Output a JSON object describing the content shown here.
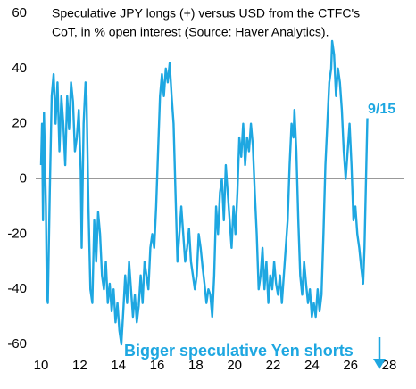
{
  "chart_data": {
    "type": "line",
    "title_lines": [
      "Speculative JPY longs (+) versus USD from the CTFC's",
      "CoT, in % open interest (Source: Haver Analytics)."
    ],
    "color": "#1ea7e1",
    "end_label": "9/15",
    "annotation": "Bigger speculative Yen shorts",
    "x": [
      10.0,
      10.05,
      10.1,
      10.15,
      10.25,
      10.3,
      10.35,
      10.45,
      10.55,
      10.65,
      10.75,
      10.85,
      10.95,
      11.05,
      11.15,
      11.25,
      11.35,
      11.45,
      11.55,
      11.65,
      11.75,
      11.85,
      11.95,
      12.05,
      12.1,
      12.2,
      12.3,
      12.35,
      12.45,
      12.55,
      12.65,
      12.75,
      12.85,
      12.95,
      13.05,
      13.15,
      13.25,
      13.35,
      13.45,
      13.55,
      13.65,
      13.75,
      13.85,
      13.95,
      14.05,
      14.15,
      14.25,
      14.35,
      14.45,
      14.55,
      14.65,
      14.75,
      14.85,
      14.95,
      15.05,
      15.15,
      15.25,
      15.35,
      15.45,
      15.55,
      15.65,
      15.75,
      15.85,
      15.95,
      16.05,
      16.15,
      16.25,
      16.35,
      16.45,
      16.55,
      16.65,
      16.75,
      16.85,
      16.95,
      17.05,
      17.15,
      17.25,
      17.35,
      17.45,
      17.55,
      17.65,
      17.75,
      17.85,
      17.95,
      18.05,
      18.15,
      18.25,
      18.35,
      18.45,
      18.55,
      18.65,
      18.75,
      18.85,
      18.95,
      19.05,
      19.15,
      19.25,
      19.35,
      19.45,
      19.55,
      19.65,
      19.75,
      19.85,
      19.95,
      20.05,
      20.15,
      20.25,
      20.35,
      20.45,
      20.55,
      20.65,
      20.75,
      20.85,
      20.95,
      21.05,
      21.15,
      21.25,
      21.35,
      21.45,
      21.55,
      21.65,
      21.75,
      21.85,
      21.95,
      22.05,
      22.15,
      22.25,
      22.35,
      22.45,
      22.55,
      22.65,
      22.75,
      22.85,
      22.95,
      23.05,
      23.1,
      23.2,
      23.3,
      23.4,
      23.5,
      23.6,
      23.7,
      23.8,
      23.9,
      24.0,
      24.1,
      24.2,
      24.3,
      24.4,
      24.5,
      24.6,
      24.7,
      24.8,
      24.9,
      25.0,
      25.05,
      25.15,
      25.25,
      25.35,
      25.45,
      25.55,
      25.65,
      25.75,
      25.85,
      25.95,
      26.05,
      26.15,
      26.25,
      26.35,
      26.45,
      26.55,
      26.65,
      26.72,
      26.8,
      26.87
    ],
    "values": [
      5,
      20,
      -15,
      24,
      -10,
      -42,
      -45,
      -5,
      30,
      38,
      20,
      35,
      10,
      30,
      20,
      5,
      30,
      18,
      35,
      28,
      10,
      15,
      25,
      3,
      -25,
      20,
      35,
      30,
      -10,
      -40,
      -45,
      -15,
      -30,
      -12,
      -20,
      -35,
      -40,
      -30,
      -45,
      -38,
      -48,
      -40,
      -52,
      -45,
      -55,
      -60,
      -48,
      -35,
      -45,
      -30,
      -40,
      -50,
      -42,
      -52,
      -46,
      -35,
      -45,
      -30,
      -35,
      -40,
      -25,
      -20,
      -25,
      -10,
      10,
      30,
      38,
      30,
      40,
      35,
      42,
      30,
      20,
      -5,
      -30,
      -20,
      -10,
      -20,
      -30,
      -25,
      -18,
      -30,
      -35,
      -40,
      -35,
      -20,
      -25,
      -32,
      -38,
      -45,
      -40,
      -42,
      -50,
      -35,
      -10,
      -20,
      -5,
      0,
      -15,
      5,
      -5,
      -15,
      -25,
      -10,
      -20,
      -5,
      15,
      8,
      20,
      5,
      15,
      10,
      20,
      12,
      -5,
      -20,
      -40,
      -35,
      -25,
      -40,
      -30,
      -45,
      -35,
      -40,
      -30,
      -38,
      -42,
      -35,
      -45,
      -35,
      -25,
      -15,
      5,
      20,
      15,
      25,
      10,
      -15,
      -35,
      -42,
      -30,
      -38,
      -45,
      -40,
      -50,
      -45,
      -50,
      -40,
      -48,
      -42,
      -20,
      5,
      20,
      35,
      40,
      50,
      45,
      30,
      40,
      35,
      25,
      10,
      0,
      10,
      20,
      5,
      -15,
      -10,
      -20,
      -25,
      -32,
      -38,
      -25,
      0,
      22
    ],
    "xlim": [
      10,
      28
    ],
    "xticks": [
      10,
      12,
      14,
      16,
      18,
      20,
      22,
      24,
      26,
      28
    ],
    "ylim": [
      -60,
      60
    ],
    "yticks": [
      -60,
      -40,
      -20,
      0,
      20,
      40,
      60
    ]
  }
}
